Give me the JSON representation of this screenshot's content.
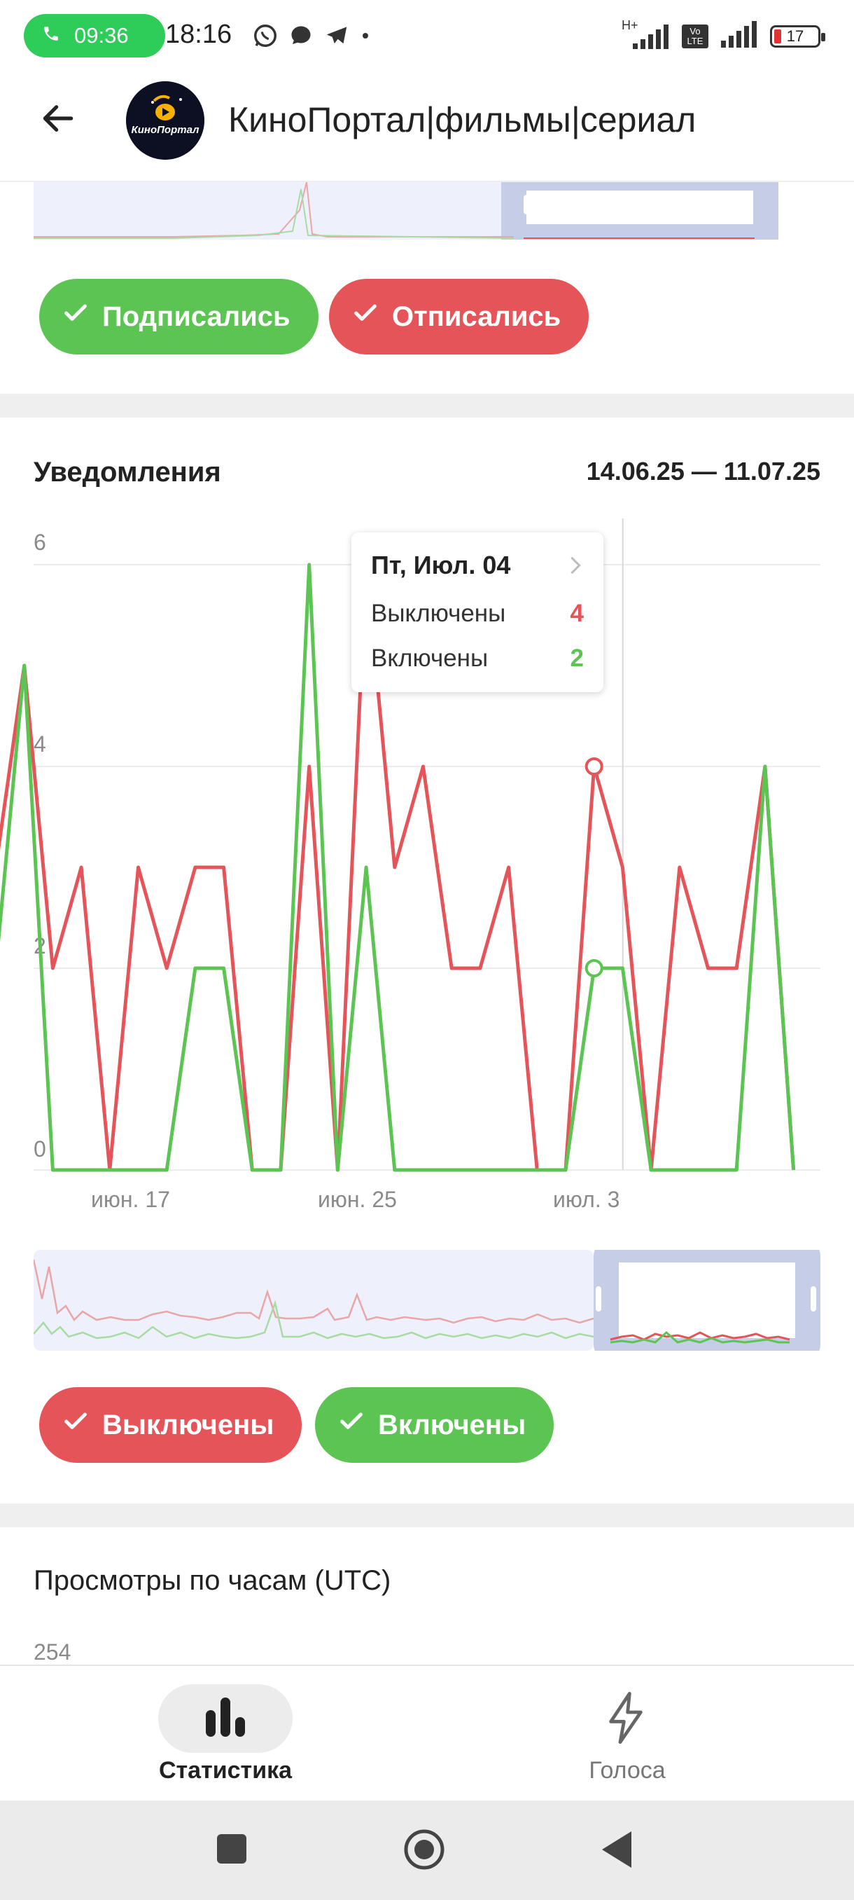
{
  "status_bar": {
    "call_time": "09:36",
    "clock": "18:16",
    "net_type": "H+",
    "volte": "Vo LTE",
    "battery": "17"
  },
  "app_bar": {
    "channel_name": "КиноПортал|фильмы|сериал",
    "avatar_text": "КиноПортал"
  },
  "subscribers_section": {
    "filters": [
      {
        "label": "Подписались",
        "color": "#5cc452"
      },
      {
        "label": "Отписались",
        "color": "#e45458"
      }
    ]
  },
  "notifications_section": {
    "title": "Уведомления",
    "date_range": "14.06.25 — 11.07.25",
    "filters": [
      {
        "label": "Выключены",
        "color": "#e45458"
      },
      {
        "label": "Включены",
        "color": "#5cc452"
      }
    ],
    "tooltip": {
      "date": "Пт, Июл. 04",
      "rows": [
        {
          "label": "Выключены",
          "value": "4",
          "color": "#e45458"
        },
        {
          "label": "Включены",
          "value": "2",
          "color": "#5cc452"
        }
      ]
    }
  },
  "chart_data": {
    "type": "line",
    "y_ticks": [
      "0",
      "2",
      "4",
      "6"
    ],
    "ylim": [
      0,
      6
    ],
    "x_tick_labels": [
      "июн. 17",
      "июн. 25",
      "июл. 3"
    ],
    "series": [
      {
        "name": "Выключены",
        "color": "#e45458",
        "values": [
          3,
          5,
          2,
          3,
          0,
          3,
          2,
          3,
          3,
          0,
          0,
          4,
          0,
          6,
          3,
          4,
          2,
          2,
          3,
          0,
          0,
          4,
          3,
          0,
          3,
          2,
          2,
          4,
          0
        ]
      },
      {
        "name": "Включены",
        "color": "#5cc452",
        "values": [
          2,
          5,
          0,
          0,
          0,
          0,
          0,
          2,
          2,
          0,
          0,
          6,
          0,
          3,
          0,
          0,
          0,
          0,
          0,
          0,
          0,
          2,
          2,
          0,
          0,
          0,
          0,
          4,
          0
        ]
      }
    ],
    "selected_index": 21
  },
  "views_section": {
    "title": "Просмотры по часам (UTC)",
    "first_tick": "254"
  },
  "bottom_nav": {
    "items": [
      {
        "label": "Статистика",
        "icon": "bar-chart-icon",
        "active": true
      },
      {
        "label": "Голоса",
        "icon": "lightning-icon",
        "active": false
      }
    ]
  }
}
